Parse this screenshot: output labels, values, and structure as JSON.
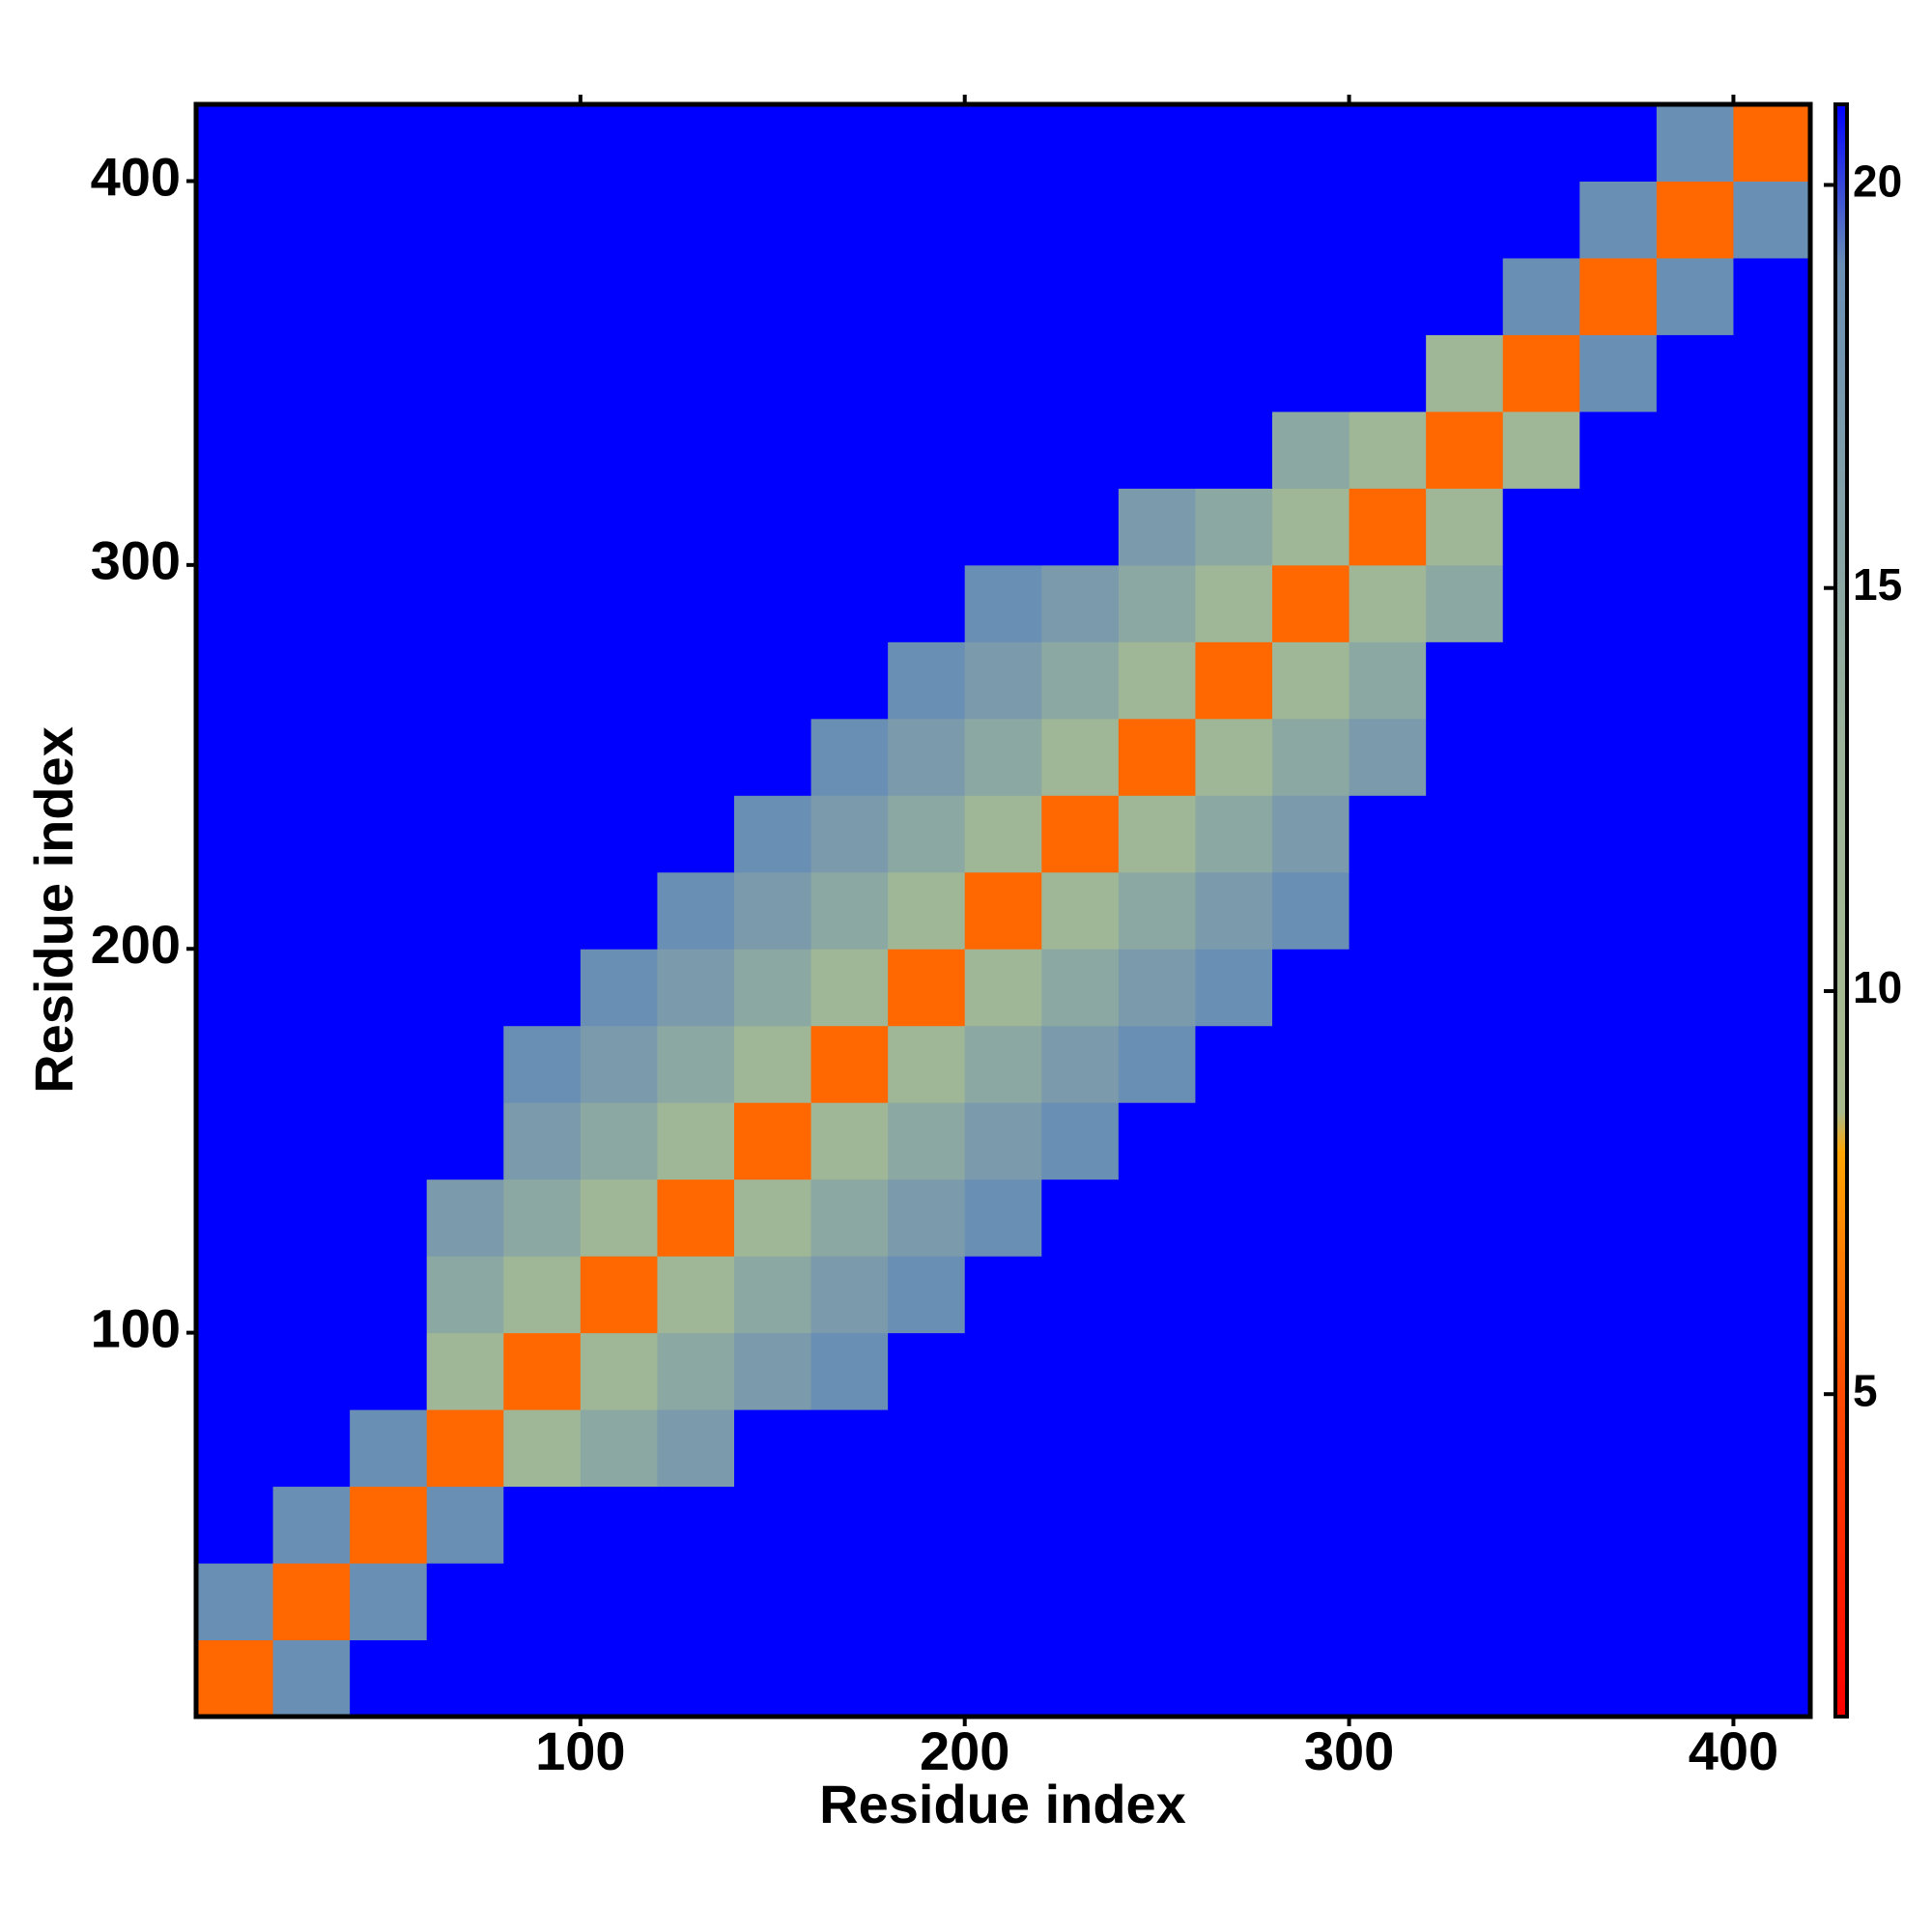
{
  "chart_data": {
    "type": "heatmap",
    "x_label": "Residue index",
    "y_label": "Residue index",
    "xbins": [
      0,
      20,
      40,
      60,
      80,
      100,
      120,
      140,
      160,
      180,
      200,
      220,
      240,
      260,
      280,
      300,
      320,
      340,
      360,
      380,
      400,
      420
    ],
    "ybins": [
      0,
      20,
      40,
      60,
      80,
      100,
      120,
      140,
      160,
      180,
      200,
      220,
      240,
      260,
      280,
      300,
      320,
      340,
      360,
      380,
      400,
      420
    ],
    "xlim": [
      0,
      420
    ],
    "ylim": [
      0,
      420
    ],
    "xticks": [
      100,
      200,
      300,
      400
    ],
    "yticks": [
      100,
      200,
      300,
      400
    ],
    "z": [
      [
        6,
        19,
        21,
        21,
        21,
        21,
        21,
        21,
        21,
        21,
        21,
        21,
        21,
        21,
        21,
        21,
        21,
        21,
        21,
        21,
        21
      ],
      [
        19,
        6,
        19,
        21,
        21,
        21,
        21,
        21,
        21,
        21,
        21,
        21,
        21,
        21,
        21,
        21,
        21,
        21,
        21,
        21,
        21
      ],
      [
        21,
        19,
        6,
        19,
        21,
        21,
        21,
        21,
        21,
        21,
        21,
        21,
        21,
        21,
        21,
        21,
        21,
        21,
        21,
        21,
        21
      ],
      [
        21,
        21,
        19,
        6,
        12,
        15,
        17,
        21,
        21,
        21,
        21,
        21,
        21,
        21,
        21,
        21,
        21,
        21,
        21,
        21,
        21
      ],
      [
        21,
        21,
        21,
        12,
        6,
        12,
        15,
        17,
        19,
        21,
        21,
        21,
        21,
        21,
        21,
        21,
        21,
        21,
        21,
        21,
        21
      ],
      [
        21,
        21,
        21,
        15,
        12,
        6,
        12,
        15,
        17,
        19,
        21,
        21,
        21,
        21,
        21,
        21,
        21,
        21,
        21,
        21,
        21
      ],
      [
        21,
        21,
        21,
        17,
        15,
        12,
        6,
        12,
        15,
        17,
        19,
        21,
        21,
        21,
        21,
        21,
        21,
        21,
        21,
        21,
        21
      ],
      [
        21,
        21,
        21,
        21,
        17,
        15,
        12,
        6,
        12,
        15,
        17,
        19,
        21,
        21,
        21,
        21,
        21,
        21,
        21,
        21,
        21
      ],
      [
        21,
        21,
        21,
        21,
        19,
        17,
        15,
        12,
        6,
        12,
        15,
        17,
        19,
        21,
        21,
        21,
        21,
        21,
        21,
        21,
        21
      ],
      [
        21,
        21,
        21,
        21,
        21,
        19,
        17,
        15,
        12,
        6,
        12,
        15,
        17,
        19,
        21,
        21,
        21,
        21,
        21,
        21,
        21
      ],
      [
        21,
        21,
        21,
        21,
        21,
        21,
        19,
        17,
        15,
        12,
        6,
        12,
        15,
        17,
        19,
        21,
        21,
        21,
        21,
        21,
        21
      ],
      [
        21,
        21,
        21,
        21,
        21,
        21,
        21,
        19,
        17,
        15,
        12,
        6,
        12,
        15,
        17,
        21,
        21,
        21,
        21,
        21,
        21
      ],
      [
        21,
        21,
        21,
        21,
        21,
        21,
        21,
        21,
        19,
        17,
        15,
        12,
        6,
        12,
        15,
        17,
        21,
        21,
        21,
        21,
        21
      ],
      [
        21,
        21,
        21,
        21,
        21,
        21,
        21,
        21,
        21,
        19,
        17,
        15,
        12,
        6,
        12,
        15,
        21,
        21,
        21,
        21,
        21
      ],
      [
        21,
        21,
        21,
        21,
        21,
        21,
        21,
        21,
        21,
        21,
        19,
        17,
        15,
        12,
        6,
        12,
        15,
        21,
        21,
        21,
        21
      ],
      [
        21,
        21,
        21,
        21,
        21,
        21,
        21,
        21,
        21,
        21,
        21,
        21,
        17,
        15,
        12,
        6,
        12,
        21,
        21,
        21,
        21
      ],
      [
        21,
        21,
        21,
        21,
        21,
        21,
        21,
        21,
        21,
        21,
        21,
        21,
        21,
        21,
        15,
        12,
        6,
        12,
        21,
        21,
        21
      ],
      [
        21,
        21,
        21,
        21,
        21,
        21,
        21,
        21,
        21,
        21,
        21,
        21,
        21,
        21,
        21,
        21,
        12,
        6,
        19,
        21,
        21
      ],
      [
        21,
        21,
        21,
        21,
        21,
        21,
        21,
        21,
        21,
        21,
        21,
        21,
        21,
        21,
        21,
        21,
        21,
        19,
        6,
        19,
        21
      ],
      [
        21,
        21,
        21,
        21,
        21,
        21,
        21,
        21,
        21,
        21,
        21,
        21,
        21,
        21,
        21,
        21,
        21,
        21,
        19,
        6,
        19
      ],
      [
        21,
        21,
        21,
        21,
        21,
        21,
        21,
        21,
        21,
        21,
        21,
        21,
        21,
        21,
        21,
        21,
        21,
        21,
        21,
        19,
        6
      ]
    ],
    "colorscale": [
      {
        "value": 1,
        "color": "#ff0000"
      },
      {
        "value": 5,
        "color": "#ff4a00"
      },
      {
        "value": 8,
        "color": "#ffa500"
      },
      {
        "value": 8.5,
        "color": "#a9bb8c"
      },
      {
        "value": 13,
        "color": "#9cb49a"
      },
      {
        "value": 19,
        "color": "#6a8fb5"
      },
      {
        "value": 21,
        "color": "#0000ff"
      }
    ],
    "colorbar_lim": [
      1,
      21
    ],
    "colorbar_ticks": [
      5,
      10,
      15,
      20
    ]
  }
}
